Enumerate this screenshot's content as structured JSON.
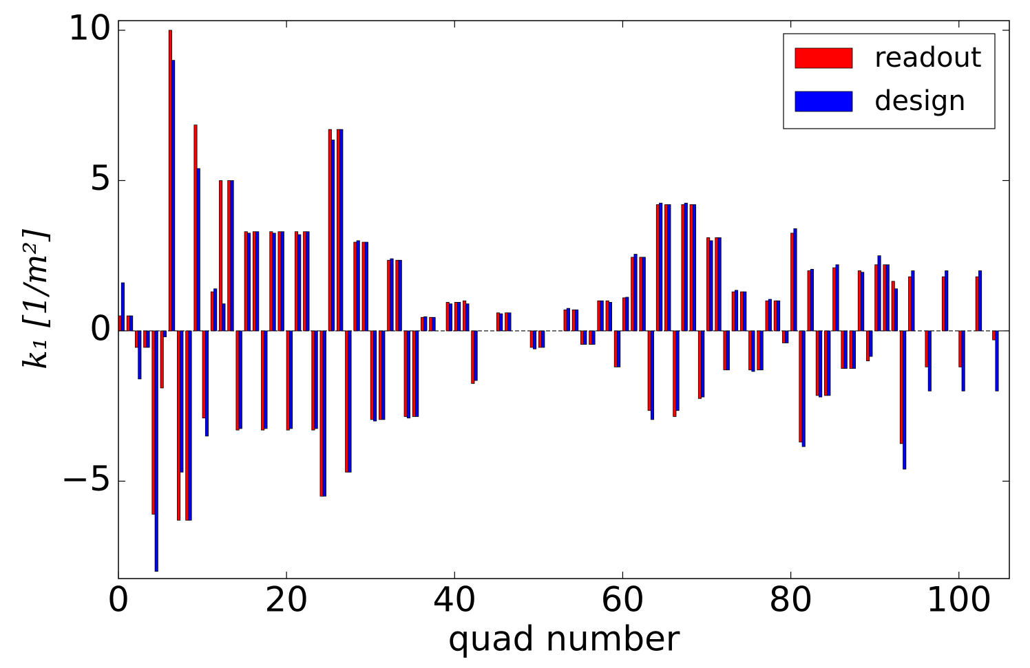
{
  "chart_data": {
    "type": "bar",
    "x_label": "quad number",
    "y_label": "k₁  [1/m²]",
    "xlim": [
      0,
      106
    ],
    "xticks": [
      0,
      20,
      40,
      60,
      80,
      100
    ],
    "ylim": [
      -8.24,
      10.32
    ],
    "yticks": [
      {
        "value": -5,
        "label": "−5"
      },
      0,
      5,
      10
    ],
    "legend": "upper right",
    "x": [
      0,
      1,
      2,
      3,
      4,
      5,
      6,
      7,
      8,
      9,
      10,
      11,
      12,
      13,
      14,
      15,
      16,
      17,
      18,
      19,
      20,
      21,
      22,
      23,
      24,
      25,
      26,
      27,
      28,
      29,
      30,
      31,
      32,
      33,
      34,
      35,
      36,
      37,
      38,
      39,
      40,
      41,
      42,
      43,
      44,
      45,
      46,
      47,
      48,
      49,
      50,
      51,
      52,
      53,
      54,
      55,
      56,
      57,
      58,
      59,
      60,
      61,
      62,
      63,
      64,
      65,
      66,
      67,
      68,
      69,
      70,
      71,
      72,
      73,
      74,
      75,
      76,
      77,
      78,
      79,
      80,
      81,
      82,
      83,
      84,
      85,
      86,
      87,
      88,
      89,
      90,
      91,
      92,
      93,
      94,
      95,
      96,
      97,
      98,
      99,
      100,
      101,
      102,
      103,
      104,
      105
    ],
    "series": [
      {
        "name": "readout",
        "color": "#ff0000",
        "values": [
          0.5,
          0.5,
          -0.55,
          -0.55,
          -6.1,
          -1.9,
          10.0,
          -6.3,
          -6.3,
          6.85,
          -2.9,
          1.3,
          5.0,
          5.0,
          -3.3,
          3.3,
          3.3,
          -3.3,
          3.3,
          3.3,
          -3.3,
          3.3,
          3.3,
          -3.3,
          -5.5,
          6.7,
          6.7,
          -4.7,
          2.95,
          2.95,
          -2.95,
          -2.95,
          2.35,
          2.35,
          -2.85,
          -2.85,
          0.45,
          0.45,
          0,
          0.95,
          0.95,
          1.0,
          -1.75,
          0,
          0,
          0.6,
          0.6,
          0,
          0,
          -0.55,
          -0.55,
          0,
          0,
          0.7,
          0.7,
          -0.45,
          -0.45,
          1.0,
          1.0,
          -1.2,
          1.1,
          2.45,
          2.45,
          -2.65,
          4.2,
          4.2,
          -2.85,
          4.2,
          4.2,
          -2.25,
          3.1,
          3.1,
          -1.3,
          1.3,
          1.3,
          -1.3,
          -1.3,
          1.0,
          1.0,
          -0.4,
          3.25,
          -3.7,
          2.0,
          -2.15,
          -2.15,
          2.1,
          -1.25,
          -1.25,
          2.0,
          -1.0,
          2.2,
          2.2,
          1.65,
          -3.75,
          1.8,
          0,
          -1.2,
          0,
          1.8,
          0,
          -1.2,
          0,
          1.8,
          0,
          -0.3,
          0
        ]
      },
      {
        "name": "design",
        "color": "#0000ff",
        "values": [
          1.6,
          0.5,
          -1.6,
          -0.55,
          -8.0,
          -0.2,
          9.0,
          -4.7,
          -6.3,
          5.4,
          -3.5,
          1.4,
          0.9,
          5.0,
          -3.25,
          3.25,
          3.3,
          -3.25,
          3.25,
          3.3,
          -3.25,
          3.2,
          3.3,
          -3.25,
          -5.5,
          6.35,
          6.7,
          -4.7,
          3.0,
          2.95,
          -3.0,
          -2.95,
          2.4,
          2.35,
          -2.9,
          -2.85,
          0.47,
          0.45,
          0,
          0.9,
          0.95,
          0.9,
          -1.65,
          0,
          0,
          0.57,
          0.6,
          0,
          0,
          -0.6,
          -0.55,
          0,
          0,
          0.75,
          0.7,
          -0.45,
          -0.45,
          1.0,
          0.95,
          -1.2,
          1.12,
          2.55,
          2.45,
          -2.95,
          4.25,
          4.2,
          -2.65,
          4.25,
          4.2,
          -2.2,
          3.0,
          3.1,
          -1.3,
          1.35,
          1.3,
          -1.35,
          -1.3,
          1.05,
          1.0,
          -0.4,
          3.4,
          -3.85,
          2.05,
          -2.2,
          -2.15,
          2.2,
          -1.25,
          -1.25,
          1.95,
          -0.85,
          2.5,
          2.2,
          1.4,
          -4.6,
          2.0,
          0,
          -2.0,
          0,
          2.0,
          0,
          -2.0,
          0,
          2.0,
          0,
          -2.0,
          0
        ]
      }
    ]
  }
}
